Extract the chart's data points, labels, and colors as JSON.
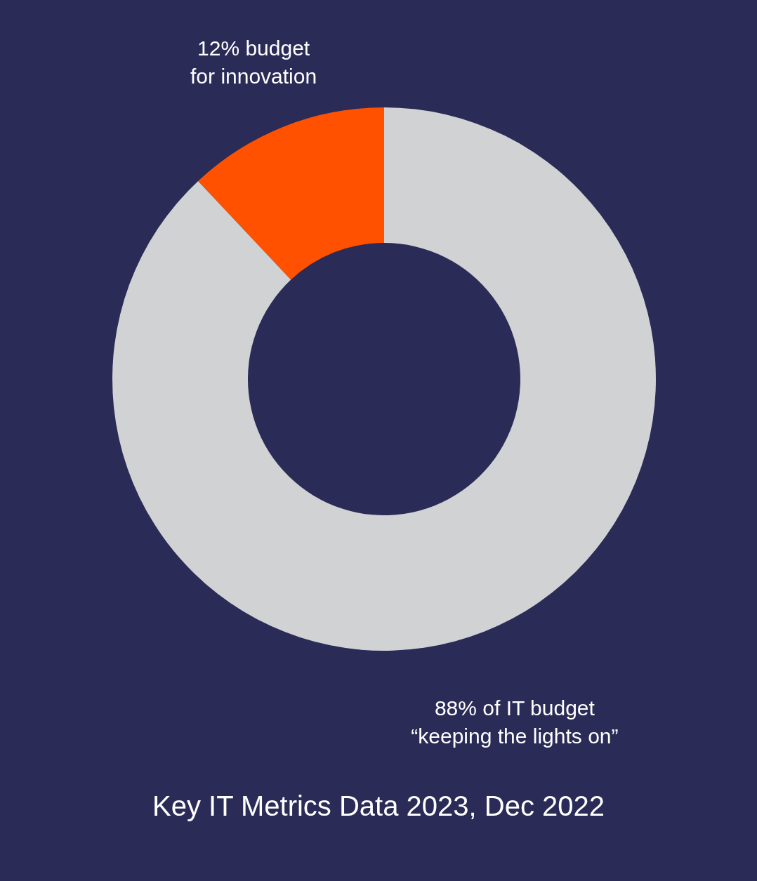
{
  "chart_data": {
    "type": "donut",
    "categories": [
      "12% budget\nfor innovation",
      "88% of IT budget\n“keeping the lights on”"
    ],
    "values": [
      12,
      88
    ],
    "colors": [
      "#ff5100",
      "#d1d2d4"
    ],
    "annotations": [
      "Key IT Metrics Data 2023, Dec 2022"
    ]
  }
}
